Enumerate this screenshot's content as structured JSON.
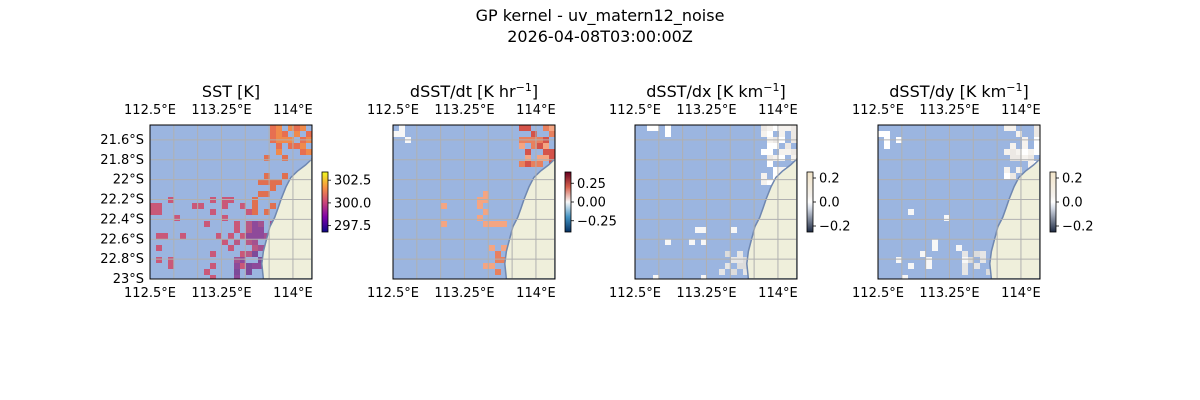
{
  "figure": {
    "title": "GP kernel - uv_matern12_noise",
    "subtitle": "2026-04-08T03:00:00Z"
  },
  "chart_data": [
    {
      "type": "heatmap",
      "panel_id": "sst",
      "title": "SST [K]",
      "xlim": [
        112.5,
        114.2
      ],
      "ylim": [
        -23.0,
        -21.45
      ],
      "x_ticks": [
        112.5,
        113.25,
        114.0
      ],
      "x_tick_labels": [
        "112.5°E",
        "113.25°E",
        "114°E"
      ],
      "y_ticks": [
        -21.6,
        -21.8,
        -22.0,
        -22.2,
        -22.4,
        -22.6,
        -22.8,
        -23.0
      ],
      "y_tick_labels": [
        "21.6°S",
        "21.8°S",
        "22°S",
        "22.2°S",
        "22.4°S",
        "22.6°S",
        "22.8°S",
        "23°S"
      ],
      "colorbar": {
        "min": 296.8,
        "max": 303.4,
        "ticks": [
          302.5,
          300.0,
          297.5
        ],
        "tick_labels": [
          "302.5",
          "300.0",
          "297.5"
        ],
        "colormap": "plasma-like"
      },
      "background_color": "#9bb5e0",
      "land_color": "#efefdb",
      "grid": true,
      "description_values": {
        "offshore_masked": true,
        "northeast_warm_k": 302.5,
        "southeast_cool_k": 298.0
      }
    },
    {
      "type": "heatmap",
      "panel_id": "dsst_dt",
      "title": "dSST/dt [K hr",
      "title_sup": "−1",
      "title_end": "]",
      "xlim": [
        112.5,
        114.2
      ],
      "ylim": [
        -23.0,
        -21.45
      ],
      "x_ticks": [
        112.5,
        113.25,
        114.0
      ],
      "x_tick_labels": [
        "112.5°E",
        "113.25°E",
        "114°E"
      ],
      "colorbar": {
        "min": -0.4,
        "max": 0.4,
        "ticks": [
          0.25,
          0.0,
          -0.25
        ],
        "tick_labels": [
          "0.25",
          "0.00",
          "−0.25"
        ],
        "colormap": "RdBu_r"
      },
      "background_color": "#9bb5e0",
      "land_color": "#efefdb",
      "grid": true
    },
    {
      "type": "heatmap",
      "panel_id": "dsst_dx",
      "title": "dSST/dx [K km",
      "title_sup": "−1",
      "title_end": "]",
      "xlim": [
        112.5,
        114.2
      ],
      "ylim": [
        -23.0,
        -21.45
      ],
      "x_ticks": [
        112.5,
        113.25,
        114.0
      ],
      "x_tick_labels": [
        "112.5°E",
        "113.25°E",
        "114°E"
      ],
      "colorbar": {
        "min": -0.25,
        "max": 0.25,
        "ticks": [
          0.2,
          0.0,
          -0.2
        ],
        "tick_labels": [
          "0.2",
          "0.0",
          "−0.2"
        ],
        "colormap": "diverging-white"
      },
      "background_color": "#9bb5e0",
      "land_color": "#efefdb",
      "grid": true
    },
    {
      "type": "heatmap",
      "panel_id": "dsst_dy",
      "title": "dSST/dy [K km",
      "title_sup": "−1",
      "title_end": "]",
      "xlim": [
        112.5,
        114.2
      ],
      "ylim": [
        -23.0,
        -21.45
      ],
      "x_ticks": [
        112.5,
        113.25,
        114.0
      ],
      "x_tick_labels": [
        "112.5°E",
        "113.25°E",
        "114°E"
      ],
      "colorbar": {
        "min": -0.25,
        "max": 0.25,
        "ticks": [
          0.2,
          0.0,
          -0.2
        ],
        "tick_labels": [
          "0.2",
          "0.0",
          "−0.2"
        ],
        "colormap": "diverging-white"
      },
      "background_color": "#9bb5e0",
      "land_color": "#efefdb",
      "grid": true
    }
  ]
}
